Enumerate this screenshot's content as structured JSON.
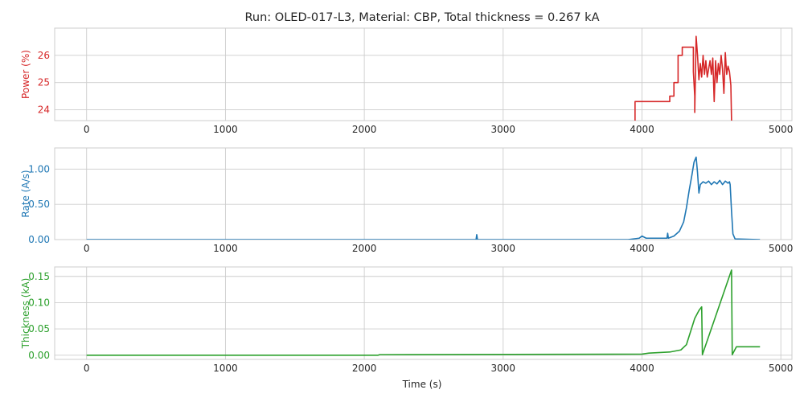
{
  "figure": {
    "title": "Run: OLED-017-L3, Material: CBP, Total thickness = 0.267 kA",
    "xlabel": "Time (s)"
  },
  "chart_data": [
    {
      "type": "line",
      "name": "power",
      "ylabel": "Power (%)",
      "color": "#d62728",
      "xlim": [
        -230,
        5080
      ],
      "ylim": [
        23.6,
        27.0
      ],
      "xticks": [
        0,
        1000,
        2000,
        3000,
        4000,
        5000
      ],
      "yticks": [
        24,
        25,
        26
      ],
      "grid": true,
      "x": [
        3950,
        3950,
        3960,
        4200,
        4200,
        4230,
        4230,
        4260,
        4260,
        4290,
        4290,
        4370,
        4370,
        4380,
        4380,
        4390,
        4400,
        4410,
        4420,
        4430,
        4440,
        4450,
        4460,
        4470,
        4480,
        4490,
        4500,
        4510,
        4520,
        4530,
        4540,
        4550,
        4560,
        4570,
        4580,
        4590,
        4600,
        4610,
        4620,
        4630,
        4640,
        4645
      ],
      "y": [
        23.6,
        24.3,
        24.3,
        24.3,
        24.5,
        24.5,
        25.0,
        25.0,
        26.0,
        26.0,
        26.3,
        26.3,
        25.4,
        24.5,
        23.9,
        26.7,
        26.0,
        25.1,
        25.7,
        25.2,
        26.0,
        25.3,
        25.8,
        25.2,
        25.5,
        25.8,
        25.3,
        25.9,
        24.3,
        25.8,
        25.0,
        25.7,
        25.3,
        26.0,
        25.5,
        24.6,
        26.1,
        25.3,
        25.6,
        25.4,
        24.9,
        23.6
      ]
    },
    {
      "type": "line",
      "name": "rate",
      "ylabel": "Rate (A/s)",
      "color": "#1f77b4",
      "xlim": [
        -230,
        5080
      ],
      "ylim": [
        0,
        1.3
      ],
      "xticks": [
        0,
        1000,
        2000,
        3000,
        4000,
        5000
      ],
      "yticks": [
        0.0,
        0.5,
        1.0
      ],
      "grid": true,
      "x": [
        0,
        2805,
        2810,
        2815,
        3900,
        3980,
        4000,
        4030,
        4180,
        4185,
        4190,
        4230,
        4270,
        4300,
        4320,
        4340,
        4360,
        4375,
        4390,
        4400,
        4410,
        4420,
        4440,
        4460,
        4480,
        4500,
        4520,
        4540,
        4560,
        4580,
        4600,
        4620,
        4630,
        4635,
        4645,
        4655,
        4670,
        4850
      ],
      "y": [
        0.0,
        0.0,
        0.07,
        0.0,
        0.0,
        0.02,
        0.05,
        0.02,
        0.02,
        0.09,
        0.02,
        0.05,
        0.12,
        0.25,
        0.45,
        0.7,
        0.92,
        1.1,
        1.17,
        0.95,
        0.66,
        0.78,
        0.82,
        0.8,
        0.83,
        0.78,
        0.82,
        0.79,
        0.84,
        0.78,
        0.83,
        0.8,
        0.82,
        0.78,
        0.4,
        0.08,
        0.01,
        0.0
      ]
    },
    {
      "type": "line",
      "name": "thickness",
      "ylabel": "Thickness (kA)",
      "color": "#2ca02c",
      "xlim": [
        -230,
        5080
      ],
      "ylim": [
        -0.008,
        0.168
      ],
      "xticks": [
        0,
        1000,
        2000,
        3000,
        4000,
        5000
      ],
      "yticks": [
        0.0,
        0.05,
        0.1,
        0.15
      ],
      "grid": true,
      "x": [
        0,
        2100,
        2110,
        4000,
        4050,
        4200,
        4280,
        4320,
        4350,
        4380,
        4410,
        4430,
        4435,
        4645,
        4650,
        4680,
        4850
      ],
      "y": [
        0.0,
        0.0,
        0.001,
        0.002,
        0.004,
        0.006,
        0.01,
        0.02,
        0.045,
        0.07,
        0.085,
        0.092,
        0.001,
        0.162,
        0.001,
        0.016,
        0.016
      ]
    }
  ]
}
